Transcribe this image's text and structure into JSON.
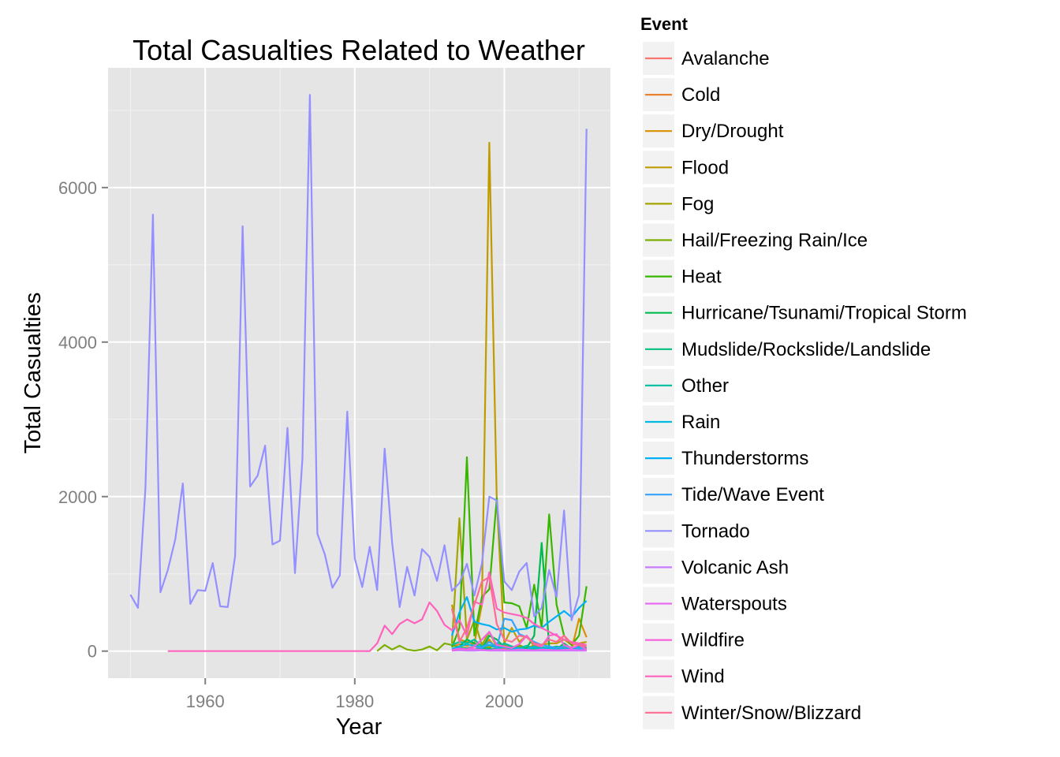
{
  "chart_data": {
    "type": "line",
    "title": "Total Casualties Related to Weather",
    "xlabel": "Year",
    "ylabel": "Total Casualties",
    "xlim": [
      1947,
      2014.2
    ],
    "ylim": [
      -350,
      7550
    ],
    "x_ticks": [
      1960,
      1980,
      2000
    ],
    "y_ticks": [
      0,
      2000,
      4000,
      6000
    ],
    "x_tick_labels": [
      "1960",
      "1980",
      "2000"
    ],
    "y_tick_labels": [
      "0",
      "2000",
      "4000",
      "6000"
    ],
    "grid": true,
    "legend": {
      "title": "Event",
      "position": "right"
    },
    "series": [
      {
        "name": "Avalanche",
        "color": "#F8766D",
        "x": [
          1993,
          1994,
          1995,
          1996,
          1997,
          1998,
          1999,
          2000,
          2001,
          2002,
          2003,
          2004,
          2005,
          2006,
          2007,
          2008,
          2009,
          2010,
          2011
        ],
        "y": [
          30,
          20,
          35,
          25,
          30,
          25,
          30,
          40,
          30,
          25,
          35,
          20,
          25,
          30,
          20,
          30,
          25,
          30,
          20
        ]
      },
      {
        "name": "Cold",
        "color": "#EA8331",
        "x": [
          1993,
          1994,
          1995,
          1996,
          1997,
          1998,
          1999,
          2000,
          2001,
          2002,
          2003,
          2004,
          2005,
          2006,
          2007,
          2008,
          2009,
          2010,
          2011
        ],
        "y": [
          60,
          90,
          70,
          100,
          80,
          60,
          50,
          40,
          50,
          40,
          30,
          20,
          30,
          40,
          60,
          50,
          40,
          30,
          20
        ]
      },
      {
        "name": "Dry/Drought",
        "color": "#D89000",
        "x": [
          1993,
          1994,
          1995,
          1996,
          1997,
          1998,
          1999,
          2000,
          2001,
          2002,
          2003,
          2004,
          2005,
          2006,
          2007,
          2008,
          2009,
          2010,
          2011
        ],
        "y": [
          10,
          50,
          20,
          60,
          30,
          150,
          20,
          10,
          30,
          10,
          20,
          10,
          10,
          20,
          10,
          10,
          20,
          420,
          180
        ]
      },
      {
        "name": "Flood",
        "color": "#C09B00",
        "x": [
          1993,
          1994,
          1995,
          1996,
          1997,
          1998,
          1999,
          2000,
          2001,
          2002,
          2003,
          2004,
          2005,
          2006,
          2007,
          2008,
          2009,
          2010,
          2011
        ],
        "y": [
          600,
          150,
          120,
          100,
          600,
          6580,
          1950,
          100,
          300,
          120,
          200,
          60,
          80,
          100,
          100,
          150,
          80,
          100,
          120
        ]
      },
      {
        "name": "Fog",
        "color": "#A3A500",
        "x": [
          1993,
          1994,
          1995,
          1996,
          1997,
          1998,
          1999,
          2000,
          2001,
          2002,
          2003,
          2004,
          2005,
          2006,
          2007,
          2008,
          2009,
          2010,
          2011
        ],
        "y": [
          100,
          1720,
          150,
          400,
          80,
          250,
          50,
          80,
          40,
          60,
          30,
          80,
          30,
          20,
          40,
          20,
          30,
          20,
          10
        ]
      },
      {
        "name": "Hail/Freezing Rain/Ice",
        "color": "#7CAE00",
        "x": [
          1983,
          1984,
          1985,
          1986,
          1987,
          1988,
          1989,
          1990,
          1991,
          1992,
          1993,
          1994,
          1995,
          1996,
          1997,
          1998,
          1999,
          2000,
          2001,
          2002,
          2003,
          2004,
          2005,
          2006,
          2007,
          2008,
          2009,
          2010,
          2011
        ],
        "y": [
          0,
          80,
          20,
          70,
          20,
          5,
          20,
          60,
          10,
          100,
          80,
          50,
          40,
          60,
          50,
          40,
          100,
          60,
          40,
          80,
          30,
          40,
          20,
          40,
          30,
          60,
          40,
          20,
          30
        ]
      },
      {
        "name": "Heat",
        "color": "#39B600",
        "x": [
          1993,
          1994,
          1995,
          1996,
          1997,
          1998,
          1999,
          2000,
          2001,
          2002,
          2003,
          2004,
          2005,
          2006,
          2007,
          2008,
          2009,
          2010,
          2011
        ],
        "y": [
          50,
          300,
          2510,
          200,
          700,
          800,
          1980,
          630,
          620,
          580,
          300,
          860,
          300,
          1770,
          600,
          200,
          80,
          200,
          840
        ]
      },
      {
        "name": "Hurricane/Tsunami/Tropical Storm",
        "color": "#00BB4E",
        "x": [
          1993,
          1994,
          1995,
          1996,
          1997,
          1998,
          1999,
          2000,
          2001,
          2002,
          2003,
          2004,
          2005,
          2006,
          2007,
          2008,
          2009,
          2010,
          2011
        ],
        "y": [
          20,
          60,
          150,
          100,
          30,
          200,
          150,
          50,
          60,
          20,
          40,
          200,
          1400,
          60,
          20,
          100,
          30,
          60,
          40
        ]
      },
      {
        "name": "Mudslide/Rockslide/Landslide",
        "color": "#00BF7D",
        "x": [
          1993,
          1994,
          1995,
          1996,
          1997,
          1998,
          1999,
          2000,
          2001,
          2002,
          2003,
          2004,
          2005,
          2006,
          2007,
          2008,
          2009,
          2010,
          2011
        ],
        "y": [
          10,
          20,
          30,
          20,
          40,
          30,
          20,
          15,
          10,
          20,
          10,
          30,
          20,
          10,
          20,
          10,
          15,
          20,
          10
        ]
      },
      {
        "name": "Other",
        "color": "#00C1A3",
        "x": [
          1993,
          1994,
          1995,
          1996,
          1997,
          1998,
          1999,
          2000,
          2001,
          2002,
          2003,
          2004,
          2005,
          2006,
          2007,
          2008,
          2009,
          2010,
          2011
        ],
        "y": [
          80,
          120,
          100,
          150,
          60,
          80,
          50,
          100,
          60,
          40,
          70,
          30,
          50,
          40,
          60,
          30,
          40,
          50,
          30
        ]
      },
      {
        "name": "Rain",
        "color": "#00BAE0",
        "x": [
          1993,
          1994,
          1995,
          1996,
          1997,
          1998,
          1999,
          2000,
          2001,
          2002,
          2003,
          2004,
          2005,
          2006,
          2007,
          2008,
          2009,
          2010,
          2011
        ],
        "y": [
          30,
          60,
          90,
          70,
          50,
          80,
          40,
          50,
          30,
          40,
          20,
          60,
          30,
          40,
          20,
          30,
          40,
          30,
          20
        ]
      },
      {
        "name": "Thunderstorms",
        "color": "#00B0F6",
        "x": [
          1993,
          1994,
          1995,
          1996,
          1997,
          1998,
          1999,
          2000,
          2001,
          2002,
          2003,
          2004,
          2005,
          2006,
          2007,
          2008,
          2009,
          2010,
          2011
        ],
        "y": [
          200,
          500,
          700,
          380,
          350,
          330,
          280,
          300,
          250,
          280,
          290,
          330,
          300,
          380,
          450,
          520,
          440,
          560,
          650
        ]
      },
      {
        "name": "Tide/Wave Event",
        "color": "#35A2FF",
        "x": [
          1993,
          1994,
          1995,
          1996,
          1997,
          1998,
          1999,
          2000,
          2001,
          2002,
          2003,
          2004,
          2005,
          2006,
          2007,
          2008,
          2009,
          2010,
          2011
        ],
        "y": [
          20,
          40,
          30,
          60,
          40,
          120,
          50,
          420,
          400,
          220,
          180,
          120,
          80,
          60,
          40,
          60,
          50,
          40,
          30
        ]
      },
      {
        "name": "Tornado",
        "color": "#9590FF",
        "x": [
          1950,
          1951,
          1952,
          1953,
          1954,
          1955,
          1956,
          1957,
          1958,
          1959,
          1960,
          1961,
          1962,
          1963,
          1964,
          1965,
          1966,
          1967,
          1968,
          1969,
          1970,
          1971,
          1972,
          1973,
          1974,
          1975,
          1976,
          1977,
          1978,
          1979,
          1980,
          1981,
          1982,
          1983,
          1984,
          1985,
          1986,
          1987,
          1988,
          1989,
          1990,
          1991,
          1992,
          1993,
          1994,
          1995,
          1996,
          1997,
          1998,
          1999,
          2000,
          2001,
          2002,
          2003,
          2004,
          2005,
          2006,
          2007,
          2008,
          2009,
          2010,
          2011
        ],
        "y": [
          730,
          560,
          2110,
          5650,
          760,
          1050,
          1450,
          2170,
          610,
          790,
          780,
          1140,
          580,
          570,
          1230,
          5500,
          2130,
          2270,
          2660,
          1380,
          1430,
          2890,
          1010,
          2500,
          7200,
          1520,
          1250,
          820,
          980,
          3100,
          1200,
          830,
          1350,
          790,
          2620,
          1400,
          570,
          1090,
          720,
          1320,
          1220,
          910,
          1370,
          780,
          880,
          1130,
          720,
          1130,
          2000,
          1950,
          900,
          790,
          1030,
          1140,
          450,
          560,
          1050,
          700,
          1820,
          400,
          730,
          6760
        ]
      },
      {
        "name": "Volcanic Ash",
        "color": "#C77CFF",
        "x": [
          1993,
          1994,
          1995,
          1996,
          1997,
          1998,
          1999,
          2000,
          2001,
          2002,
          2003,
          2004,
          2005,
          2006,
          2007,
          2008,
          2009,
          2010,
          2011
        ],
        "y": [
          5,
          10,
          5,
          5,
          10,
          5,
          5,
          5,
          5,
          5,
          5,
          5,
          5,
          5,
          5,
          5,
          5,
          5,
          5
        ]
      },
      {
        "name": "Waterspouts",
        "color": "#E76BF3",
        "x": [
          1993,
          1994,
          1995,
          1996,
          1997,
          1998,
          1999,
          2000,
          2001,
          2002,
          2003,
          2004,
          2005,
          2006,
          2007,
          2008,
          2009,
          2010,
          2011
        ],
        "y": [
          15,
          30,
          20,
          25,
          15,
          10,
          20,
          15,
          10,
          20,
          15,
          10,
          20,
          15,
          10,
          15,
          20,
          10,
          15
        ]
      },
      {
        "name": "Wildfire",
        "color": "#FA62DB",
        "x": [
          1993,
          1994,
          1995,
          1996,
          1997,
          1998,
          1999,
          2000,
          2001,
          2002,
          2003,
          2004,
          2005,
          2006,
          2007,
          2008,
          2009,
          2010,
          2011
        ],
        "y": [
          10,
          30,
          20,
          60,
          150,
          250,
          80,
          60,
          40,
          90,
          200,
          90,
          60,
          200,
          220,
          80,
          40,
          80,
          20
        ]
      },
      {
        "name": "Wind",
        "color": "#FF62BC",
        "x": [
          1955,
          1960,
          1970,
          1980,
          1982,
          1983,
          1984,
          1985,
          1986,
          1987,
          1988,
          1989,
          1990,
          1991,
          1992,
          1993,
          1994,
          1995,
          1996,
          1997,
          1998,
          1999,
          2000,
          2001,
          2002,
          2003,
          2004,
          2005,
          2006,
          2007,
          2008,
          2009,
          2010,
          2011
        ],
        "y": [
          0,
          0,
          0,
          0,
          0,
          100,
          330,
          220,
          350,
          410,
          360,
          410,
          630,
          520,
          340,
          270,
          400,
          200,
          640,
          600,
          1020,
          550,
          500,
          480,
          460,
          430,
          350,
          300,
          250,
          200,
          150,
          120,
          100,
          80
        ]
      },
      {
        "name": "Winter/Snow/Blizzard",
        "color": "#FF6C91",
        "x": [
          1993,
          1994,
          1995,
          1996,
          1997,
          1998,
          1999,
          2000,
          2001,
          2002,
          2003,
          2004,
          2005,
          2006,
          2007,
          2008,
          2009,
          2010,
          2011
        ],
        "y": [
          550,
          120,
          300,
          600,
          900,
          960,
          350,
          150,
          120,
          200,
          180,
          100,
          80,
          150,
          120,
          200,
          100,
          80,
          60
        ]
      }
    ]
  }
}
